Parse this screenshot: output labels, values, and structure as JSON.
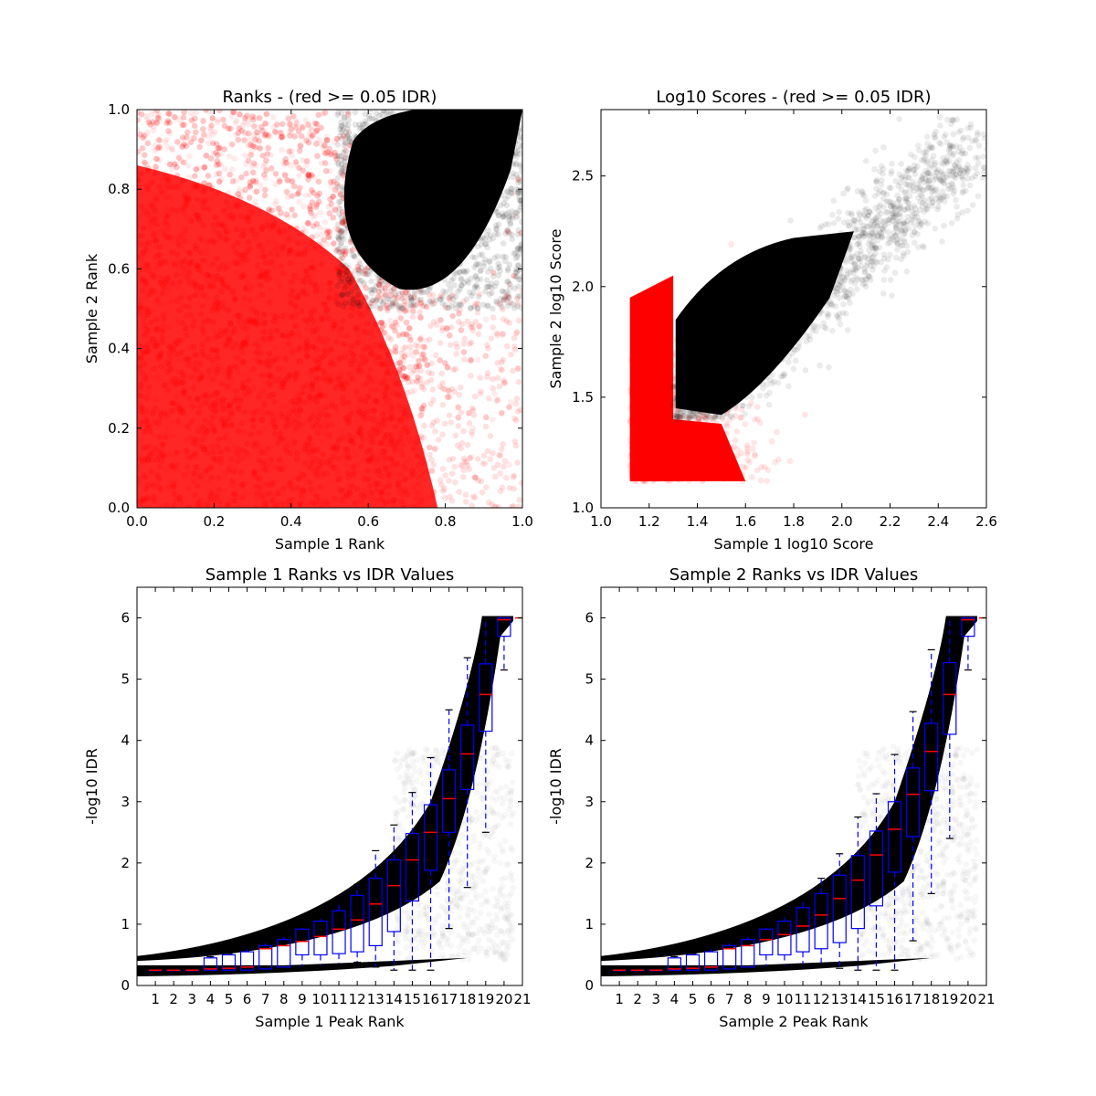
{
  "chart_data": [
    {
      "type": "scatter",
      "title": "Ranks - (red >= 0.05 IDR)",
      "xlabel": "Sample 1 Rank",
      "ylabel": "Sample 2 Rank",
      "xlim": [
        0.0,
        1.0
      ],
      "ylim": [
        0.0,
        1.0
      ],
      "xticks": [
        "0.0",
        "0.2",
        "0.4",
        "0.6",
        "0.8",
        "1.0"
      ],
      "yticks": [
        "0.0",
        "0.2",
        "0.4",
        "0.6",
        "0.8",
        "1.0"
      ],
      "grid": false,
      "colors": {
        "pass": "#000000",
        "fail": "#ff0000"
      },
      "series": [
        {
          "color": "#ff0000",
          "description_points": [
            [
              0.1,
              0.1
            ],
            [
              0.3,
              0.3
            ],
            [
              0.5,
              0.2
            ],
            [
              0.2,
              0.6
            ],
            [
              0.6,
              0.4
            ],
            [
              0.7,
              0.1
            ],
            [
              0.1,
              0.8
            ],
            [
              0.4,
              0.7
            ],
            [
              0.85,
              0.3
            ],
            [
              0.95,
              0.1
            ]
          ]
        },
        {
          "color": "#000000",
          "description_points": [
            [
              0.7,
              0.75
            ],
            [
              0.8,
              0.8
            ],
            [
              0.9,
              0.9
            ],
            [
              0.95,
              0.95
            ],
            [
              0.6,
              0.8
            ],
            [
              0.75,
              0.6
            ],
            [
              0.55,
              0.85
            ],
            [
              0.85,
              0.7
            ],
            [
              0.65,
              0.9
            ],
            [
              0.99,
              0.99
            ]
          ]
        }
      ]
    },
    {
      "type": "scatter",
      "title": "Log10 Scores - (red >= 0.05 IDR)",
      "xlabel": "Sample 1 log10 Score",
      "ylabel": "Sample 2 log10 Score",
      "xlim": [
        1.0,
        2.6
      ],
      "ylim": [
        1.0,
        2.8
      ],
      "xticks": [
        "1.0",
        "1.2",
        "1.4",
        "1.6",
        "1.8",
        "2.0",
        "2.2",
        "2.4",
        "2.6"
      ],
      "yticks": [
        "1.0",
        "1.5",
        "2.0",
        "2.5"
      ],
      "grid": false,
      "series": [
        {
          "color": "#ff0000",
          "description_points": [
            [
              1.15,
              1.15
            ],
            [
              1.2,
              1.4
            ],
            [
              1.3,
              1.2
            ],
            [
              1.15,
              1.9
            ],
            [
              1.45,
              1.3
            ],
            [
              1.6,
              1.15
            ],
            [
              1.25,
              1.7
            ],
            [
              1.5,
              1.25
            ]
          ]
        },
        {
          "color": "#000000",
          "description_points": [
            [
              1.35,
              1.5
            ],
            [
              1.5,
              1.6
            ],
            [
              1.7,
              1.8
            ],
            [
              1.9,
              2.0
            ],
            [
              2.1,
              2.2
            ],
            [
              2.3,
              2.5
            ],
            [
              1.4,
              1.9
            ],
            [
              1.8,
              1.6
            ],
            [
              2.5,
              2.65
            ]
          ]
        }
      ]
    },
    {
      "type": "box",
      "title": "Sample 1 Ranks vs IDR Values",
      "xlabel": "Sample 1 Peak Rank",
      "ylabel": "-log10 IDR",
      "ylim": [
        0,
        6.5
      ],
      "xticks": [
        "1",
        "2",
        "3",
        "4",
        "5",
        "6",
        "7",
        "8",
        "9",
        "10",
        "11",
        "12",
        "13",
        "14",
        "15",
        "16",
        "17",
        "18",
        "19",
        "20",
        "21"
      ],
      "yticks": [
        "0",
        "1",
        "2",
        "3",
        "4",
        "5",
        "6"
      ],
      "grid": false,
      "boxes": [
        {
          "pos": 1,
          "q1": 0.25,
          "med": 0.25,
          "q3": 0.25,
          "lo": 0.25,
          "hi": 0.25
        },
        {
          "pos": 2,
          "q1": 0.25,
          "med": 0.25,
          "q3": 0.25,
          "lo": 0.25,
          "hi": 0.25
        },
        {
          "pos": 3,
          "q1": 0.25,
          "med": 0.25,
          "q3": 0.25,
          "lo": 0.25,
          "hi": 0.25
        },
        {
          "pos": 4,
          "q1": 0.25,
          "med": 0.27,
          "q3": 0.45,
          "lo": 0.25,
          "hi": 0.47
        },
        {
          "pos": 5,
          "q1": 0.25,
          "med": 0.28,
          "q3": 0.5,
          "lo": 0.25,
          "hi": 0.52
        },
        {
          "pos": 6,
          "q1": 0.25,
          "med": 0.3,
          "q3": 0.55,
          "lo": 0.25,
          "hi": 0.6
        },
        {
          "pos": 7,
          "q1": 0.27,
          "med": 0.6,
          "q3": 0.65,
          "lo": 0.25,
          "hi": 0.7
        },
        {
          "pos": 8,
          "q1": 0.3,
          "med": 0.65,
          "q3": 0.75,
          "lo": 0.28,
          "hi": 0.8
        },
        {
          "pos": 9,
          "q1": 0.5,
          "med": 0.72,
          "q3": 0.92,
          "lo": 0.3,
          "hi": 0.95
        },
        {
          "pos": 10,
          "q1": 0.5,
          "med": 0.8,
          "q3": 1.05,
          "lo": 0.32,
          "hi": 1.1
        },
        {
          "pos": 11,
          "q1": 0.52,
          "med": 0.92,
          "q3": 1.22,
          "lo": 0.35,
          "hi": 1.35
        },
        {
          "pos": 12,
          "q1": 0.55,
          "med": 1.07,
          "q3": 1.47,
          "lo": 0.38,
          "hi": 1.65
        },
        {
          "pos": 13,
          "q1": 0.65,
          "med": 1.33,
          "q3": 1.75,
          "lo": 0.3,
          "hi": 2.2
        },
        {
          "pos": 14,
          "q1": 0.88,
          "med": 1.63,
          "q3": 2.05,
          "lo": 0.25,
          "hi": 2.62
        },
        {
          "pos": 15,
          "q1": 1.38,
          "med": 2.05,
          "q3": 2.48,
          "lo": 0.25,
          "hi": 3.15
        },
        {
          "pos": 16,
          "q1": 1.88,
          "med": 2.5,
          "q3": 2.95,
          "lo": 0.25,
          "hi": 3.72
        },
        {
          "pos": 17,
          "q1": 2.5,
          "med": 3.05,
          "q3": 3.52,
          "lo": 0.93,
          "hi": 4.5
        },
        {
          "pos": 18,
          "q1": 3.2,
          "med": 3.78,
          "q3": 4.25,
          "lo": 1.6,
          "hi": 5.35
        },
        {
          "pos": 19,
          "q1": 4.15,
          "med": 4.75,
          "q3": 5.25,
          "lo": 2.5,
          "hi": 5.97
        },
        {
          "pos": 20,
          "q1": 5.7,
          "med": 5.97,
          "q3": 6.0,
          "lo": 5.15,
          "hi": 6.0
        }
      ]
    },
    {
      "type": "box",
      "title": "Sample 2 Ranks vs IDR Values",
      "xlabel": "Sample 2 Peak Rank",
      "ylabel": "-log10 IDR",
      "ylim": [
        0,
        6.5
      ],
      "xticks": [
        "1",
        "2",
        "3",
        "4",
        "5",
        "6",
        "7",
        "8",
        "9",
        "10",
        "11",
        "12",
        "13",
        "14",
        "15",
        "16",
        "17",
        "18",
        "19",
        "20",
        "21"
      ],
      "yticks": [
        "0",
        "1",
        "2",
        "3",
        "4",
        "5",
        "6"
      ],
      "grid": false,
      "boxes": [
        {
          "pos": 1,
          "q1": 0.25,
          "med": 0.25,
          "q3": 0.25,
          "lo": 0.25,
          "hi": 0.25
        },
        {
          "pos": 2,
          "q1": 0.25,
          "med": 0.25,
          "q3": 0.25,
          "lo": 0.25,
          "hi": 0.25
        },
        {
          "pos": 3,
          "q1": 0.25,
          "med": 0.25,
          "q3": 0.25,
          "lo": 0.25,
          "hi": 0.25
        },
        {
          "pos": 4,
          "q1": 0.25,
          "med": 0.27,
          "q3": 0.45,
          "lo": 0.25,
          "hi": 0.47
        },
        {
          "pos": 5,
          "q1": 0.25,
          "med": 0.28,
          "q3": 0.5,
          "lo": 0.25,
          "hi": 0.52
        },
        {
          "pos": 6,
          "q1": 0.25,
          "med": 0.3,
          "q3": 0.55,
          "lo": 0.25,
          "hi": 0.6
        },
        {
          "pos": 7,
          "q1": 0.27,
          "med": 0.6,
          "q3": 0.65,
          "lo": 0.25,
          "hi": 0.7
        },
        {
          "pos": 8,
          "q1": 0.3,
          "med": 0.65,
          "q3": 0.75,
          "lo": 0.28,
          "hi": 0.8
        },
        {
          "pos": 9,
          "q1": 0.5,
          "med": 0.75,
          "q3": 0.92,
          "lo": 0.3,
          "hi": 0.95
        },
        {
          "pos": 10,
          "q1": 0.5,
          "med": 0.83,
          "q3": 1.05,
          "lo": 0.32,
          "hi": 1.12
        },
        {
          "pos": 11,
          "q1": 0.55,
          "med": 0.97,
          "q3": 1.27,
          "lo": 0.35,
          "hi": 1.4
        },
        {
          "pos": 12,
          "q1": 0.6,
          "med": 1.15,
          "q3": 1.5,
          "lo": 0.3,
          "hi": 1.75
        },
        {
          "pos": 13,
          "q1": 0.7,
          "med": 1.42,
          "q3": 1.8,
          "lo": 0.28,
          "hi": 2.15
        },
        {
          "pos": 14,
          "q1": 0.93,
          "med": 1.72,
          "q3": 2.12,
          "lo": 0.25,
          "hi": 2.75
        },
        {
          "pos": 15,
          "q1": 1.3,
          "med": 2.13,
          "q3": 2.52,
          "lo": 0.25,
          "hi": 3.13
        },
        {
          "pos": 16,
          "q1": 1.85,
          "med": 2.55,
          "q3": 3.0,
          "lo": 0.25,
          "hi": 3.77
        },
        {
          "pos": 17,
          "q1": 2.43,
          "med": 3.12,
          "q3": 3.55,
          "lo": 0.73,
          "hi": 4.47
        },
        {
          "pos": 18,
          "q1": 3.18,
          "med": 3.82,
          "q3": 4.28,
          "lo": 1.5,
          "hi": 5.48
        },
        {
          "pos": 19,
          "q1": 4.1,
          "med": 4.75,
          "q3": 5.27,
          "lo": 2.4,
          "hi": 5.97
        },
        {
          "pos": 20,
          "q1": 5.7,
          "med": 5.97,
          "q3": 6.0,
          "lo": 5.15,
          "hi": 6.0
        }
      ]
    }
  ]
}
